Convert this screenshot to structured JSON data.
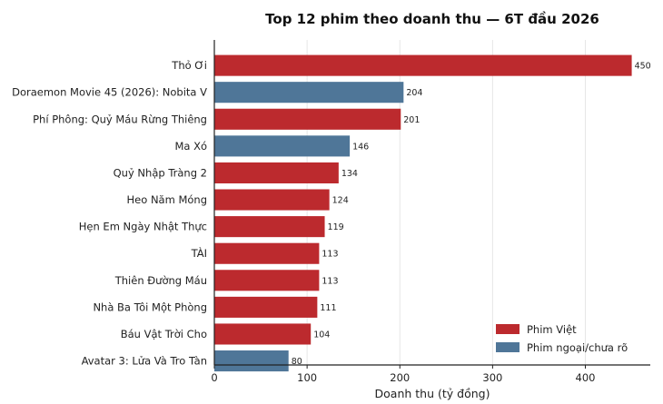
{
  "chart_data": {
    "type": "bar",
    "orientation": "horizontal",
    "title": "Top 12 phim theo doanh thu — 6T đầu 2026",
    "xlabel": "Doanh thu (tỷ đồng)",
    "ylabel": "",
    "xlim": [
      0,
      470
    ],
    "xticks": [
      0,
      100,
      200,
      300,
      400
    ],
    "grid": "vertical",
    "legend_position": "bottom-right",
    "categories": [
      "Thỏ Ơi",
      "Doraemon Movie 45 (2026): Nobita V",
      "Phí Phông: Quỷ Máu Rừng Thiêng",
      "Ma Xó",
      "Quỷ Nhập Tràng 2",
      "Heo Năm Móng",
      "Hẹn Em Ngày Nhật Thực",
      "TÀI",
      "Thiên Đường Máu",
      "Nhà Ba Tôi Một Phòng",
      "Báu Vật Trời Cho",
      "Avatar 3: Lửa Và Tro Tàn"
    ],
    "values": [
      450,
      204,
      201,
      146,
      134,
      124,
      119,
      113,
      113,
      111,
      104,
      80
    ],
    "groups": [
      "viet",
      "foreign",
      "viet",
      "foreign",
      "viet",
      "viet",
      "viet",
      "viet",
      "viet",
      "viet",
      "viet",
      "foreign"
    ],
    "legend": [
      {
        "key": "viet",
        "label": "Phim Việt",
        "color": "#bc2a2e"
      },
      {
        "key": "foreign",
        "label": "Phim ngoại/chưa rõ",
        "color": "#4f7698"
      }
    ]
  }
}
